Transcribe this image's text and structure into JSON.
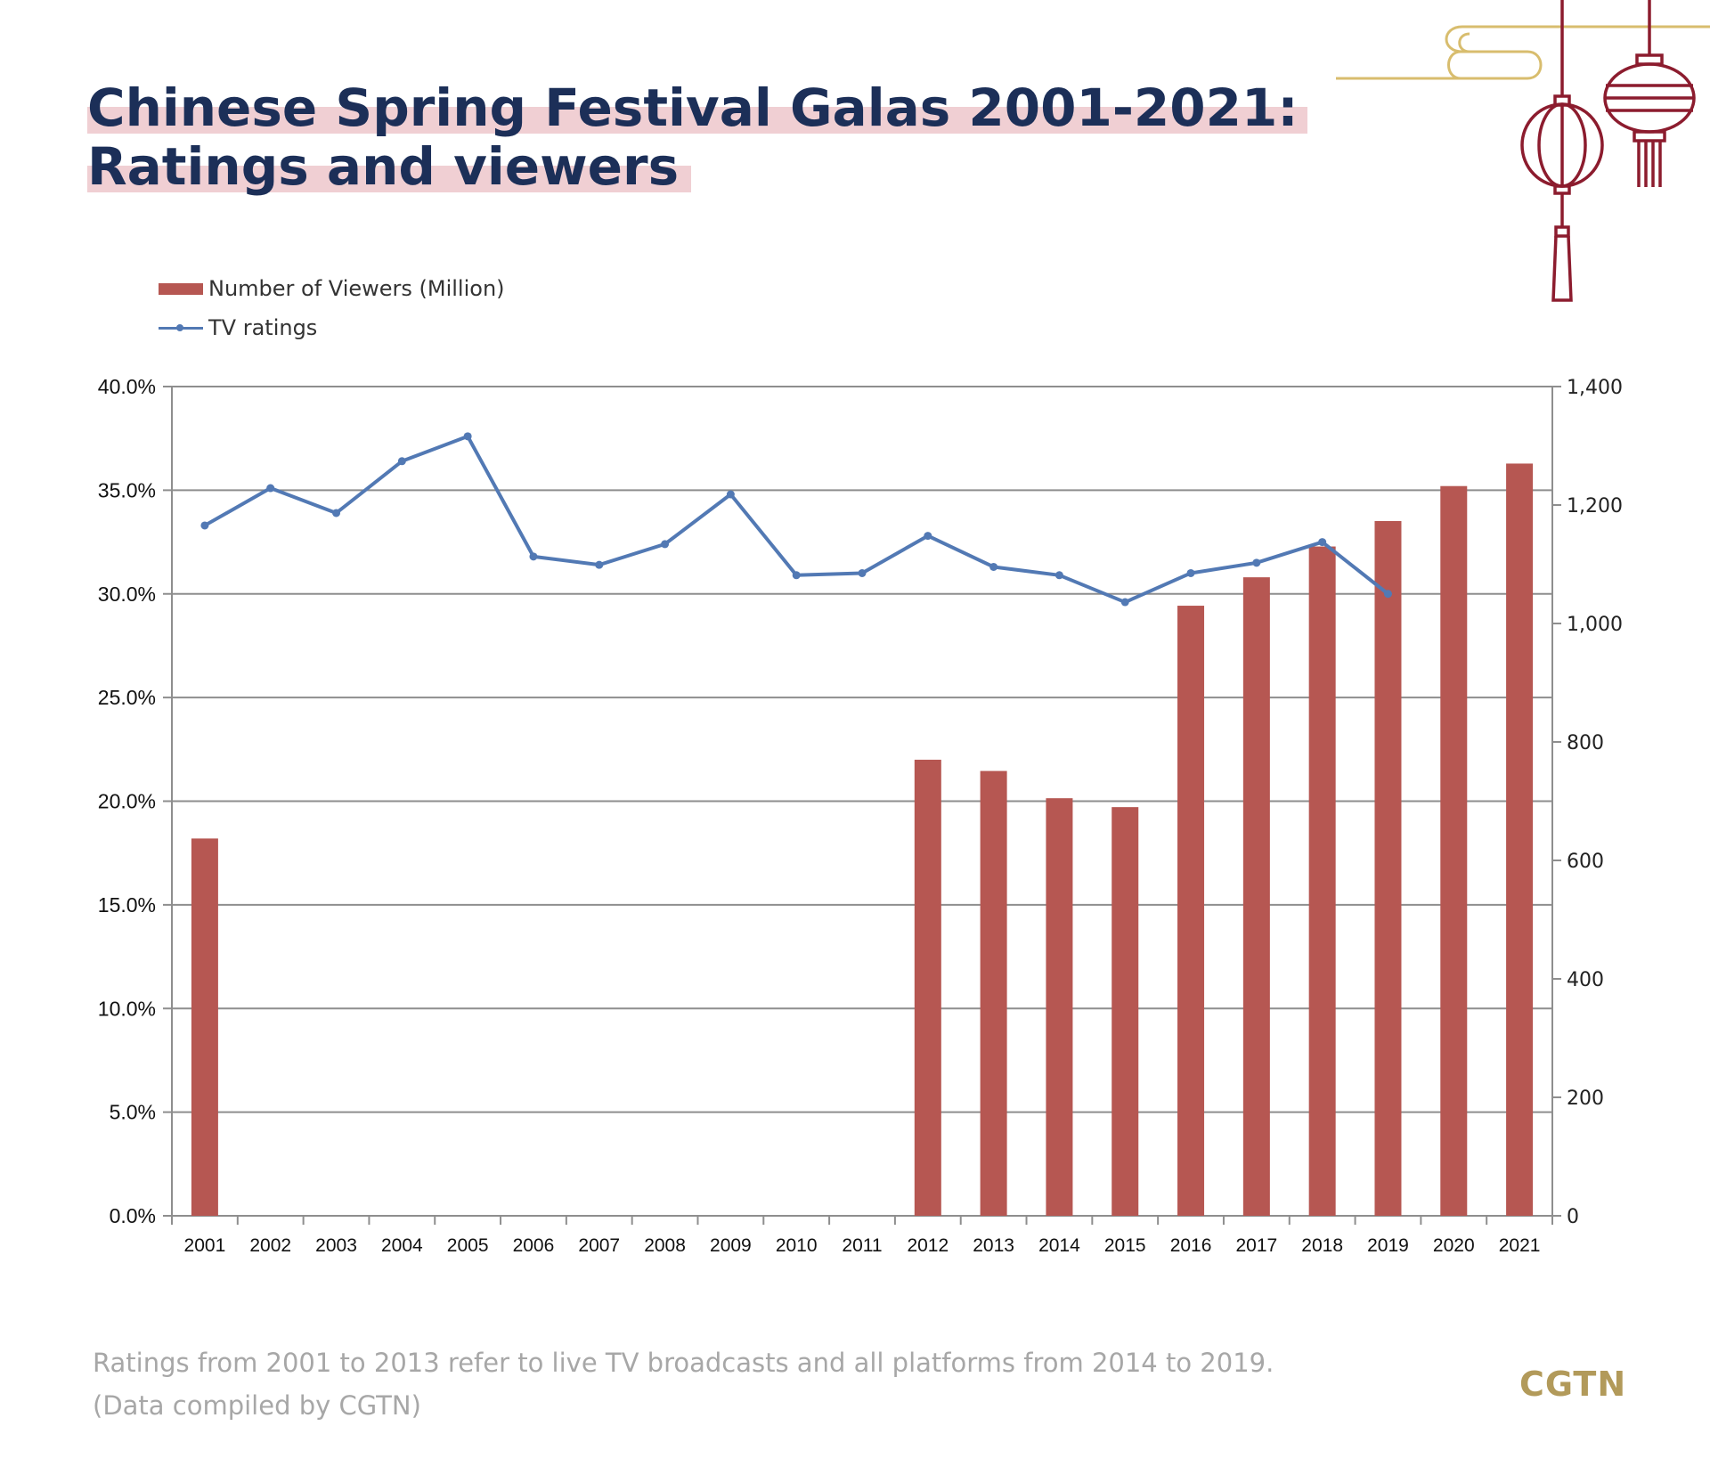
{
  "title": {
    "line1": "Chinese Spring Festival Galas 2001-2021:",
    "line2": "Ratings and viewers"
  },
  "legend": {
    "bars": "Number of Viewers (Million)",
    "line": "TV ratings"
  },
  "colors": {
    "bars": "#b65752",
    "line": "#5279b4",
    "title": "#1c2f58",
    "highlight": "#f0cfd3",
    "lantern": "#8c1c2e",
    "gold": "#d8bd6e",
    "brand": "#b29a5a"
  },
  "chart_data": {
    "type": "bar",
    "categories": [
      "2001",
      "2002",
      "2003",
      "2004",
      "2005",
      "2006",
      "2007",
      "2008",
      "2009",
      "2010",
      "2011",
      "2012",
      "2013",
      "2014",
      "2015",
      "2016",
      "2017",
      "2018",
      "2019",
      "2020",
      "2021"
    ],
    "series": [
      {
        "name": "Number of Viewers (Million)",
        "type": "bar",
        "axis": "right",
        "values": [
          637,
          null,
          null,
          null,
          null,
          null,
          null,
          null,
          null,
          null,
          null,
          770,
          751,
          705,
          690,
          1030,
          1078,
          1130,
          1173,
          1232,
          1270
        ]
      },
      {
        "name": "TV ratings",
        "type": "line",
        "axis": "left",
        "values": [
          33.3,
          35.1,
          33.9,
          36.4,
          37.6,
          31.8,
          31.4,
          32.4,
          34.8,
          30.9,
          31.0,
          32.8,
          31.3,
          30.9,
          29.6,
          31.0,
          31.5,
          32.5,
          30.0,
          null,
          null
        ]
      }
    ],
    "y_left": {
      "range": [
        0,
        40
      ],
      "ticks": [
        0,
        5,
        10,
        15,
        20,
        25,
        30,
        35,
        40
      ],
      "tick_labels": [
        "0.0%",
        "5.0%",
        "10.0%",
        "15.0%",
        "20.0%",
        "25.0%",
        "30.0%",
        "35.0%",
        "40.0%"
      ]
    },
    "y_right": {
      "range": [
        0,
        1400
      ],
      "ticks": [
        0,
        200,
        400,
        600,
        800,
        1000,
        1200,
        1400
      ],
      "tick_labels": [
        "0",
        "200",
        "400",
        "600",
        "800",
        "1,000",
        "1,200",
        "1,400"
      ]
    },
    "grid": true,
    "legend_position": "top-left"
  },
  "footnote": {
    "line1": "Ratings from 2001 to 2013 refer to live TV broadcasts and all platforms from 2014 to 2019.",
    "line2": "(Data compiled by CGTN)"
  },
  "brand": "CGTN",
  "decor": {
    "lantern_icon": "chinese-lantern-icon",
    "cloud_icon": "cloud-scroll-icon"
  }
}
